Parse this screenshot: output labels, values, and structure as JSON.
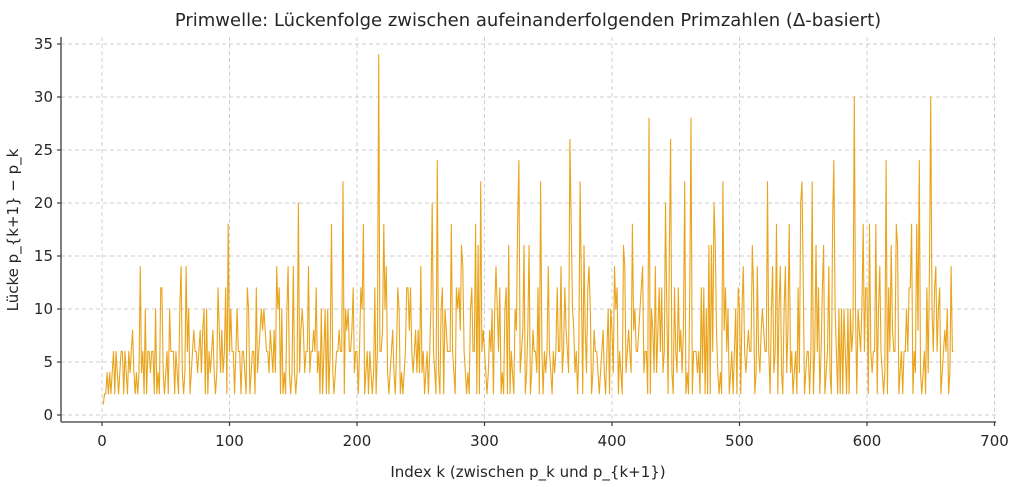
{
  "figure": {
    "title": "Primwelle: Lückenfolge zwischen aufeinanderfolgenden Primzahlen (Δ-basiert)",
    "xlabel": "Index k (zwischen p_k und p_{k+1})",
    "ylabel": "Lücke p_{k+1} − p_k"
  },
  "style": {
    "line_color": "#E9A41C",
    "grid_color": "#cccccc",
    "spine_color": "#3a3a3a",
    "text_color": "#262626",
    "background": "#ffffff"
  },
  "chart_data": {
    "type": "line",
    "title": "Primwelle: Lückenfolge zwischen aufeinanderfolgenden Primzahlen (Δ-basiert)",
    "xlabel": "Index k (zwischen p_k und p_{k+1})",
    "ylabel": "Lücke p_{k+1} − p_k",
    "legend": "none",
    "grid": "dashed",
    "x_start": 1,
    "n_points": 668,
    "xlim": [
      -33,
      701
    ],
    "ylim": [
      -0.65,
      35.65
    ],
    "xticks": [
      0,
      100,
      200,
      300,
      400,
      500,
      600,
      700
    ],
    "yticks": [
      0,
      5,
      10,
      15,
      20,
      25,
      30,
      35
    ],
    "values": [
      1,
      2,
      2,
      4,
      2,
      4,
      2,
      4,
      6,
      2,
      6,
      4,
      2,
      4,
      6,
      6,
      2,
      6,
      4,
      2,
      6,
      4,
      6,
      8,
      4,
      2,
      4,
      2,
      4,
      14,
      4,
      6,
      2,
      10,
      2,
      6,
      6,
      4,
      6,
      6,
      2,
      10,
      2,
      4,
      2,
      12,
      12,
      4,
      2,
      4,
      6,
      2,
      10,
      6,
      6,
      6,
      2,
      6,
      4,
      2,
      10,
      14,
      4,
      2,
      4,
      14,
      6,
      10,
      2,
      4,
      6,
      8,
      6,
      6,
      4,
      6,
      8,
      4,
      8,
      10,
      2,
      10,
      2,
      6,
      4,
      6,
      8,
      4,
      2,
      4,
      12,
      8,
      4,
      8,
      4,
      6,
      12,
      2,
      18,
      6,
      10,
      6,
      6,
      2,
      6,
      10,
      6,
      6,
      2,
      6,
      6,
      4,
      2,
      12,
      10,
      2,
      4,
      6,
      6,
      2,
      12,
      4,
      6,
      8,
      10,
      8,
      10,
      8,
      6,
      6,
      4,
      8,
      6,
      4,
      8,
      4,
      14,
      10,
      12,
      2,
      10,
      2,
      4,
      2,
      10,
      14,
      4,
      2,
      4,
      14,
      4,
      2,
      4,
      20,
      4,
      8,
      10,
      8,
      4,
      6,
      6,
      14,
      4,
      6,
      6,
      8,
      6,
      12,
      4,
      6,
      2,
      10,
      2,
      6,
      10,
      2,
      10,
      2,
      6,
      18,
      4,
      2,
      4,
      6,
      6,
      8,
      6,
      6,
      22,
      2,
      10,
      8,
      10,
      6,
      6,
      8,
      12,
      4,
      6,
      6,
      2,
      6,
      12,
      10,
      18,
      2,
      4,
      6,
      2,
      6,
      4,
      2,
      4,
      12,
      2,
      6,
      34,
      6,
      6,
      8,
      18,
      10,
      14,
      4,
      2,
      4,
      6,
      8,
      4,
      2,
      6,
      12,
      10,
      2,
      4,
      2,
      4,
      6,
      12,
      12,
      8,
      12,
      6,
      4,
      6,
      8,
      4,
      8,
      4,
      14,
      4,
      6,
      2,
      4,
      6,
      2,
      6,
      10,
      20,
      6,
      4,
      2,
      24,
      4,
      2,
      10,
      12,
      2,
      10,
      8,
      6,
      6,
      6,
      18,
      6,
      4,
      2,
      12,
      10,
      12,
      8,
      16,
      14,
      6,
      4,
      2,
      4,
      2,
      10,
      12,
      6,
      6,
      18,
      2,
      16,
      2,
      22,
      6,
      8,
      6,
      4,
      2,
      4,
      8,
      6,
      10,
      2,
      10,
      14,
      10,
      6,
      12,
      2,
      4,
      2,
      10,
      12,
      2,
      16,
      2,
      6,
      4,
      2,
      10,
      8,
      18,
      24,
      4,
      6,
      8,
      16,
      2,
      4,
      8,
      16,
      2,
      4,
      8,
      6,
      6,
      4,
      12,
      2,
      22,
      6,
      2,
      6,
      4,
      6,
      14,
      6,
      4,
      2,
      6,
      4,
      6,
      12,
      6,
      6,
      14,
      4,
      6,
      12,
      8,
      6,
      4,
      26,
      18,
      10,
      8,
      4,
      6,
      2,
      6,
      22,
      12,
      2,
      16,
      8,
      4,
      12,
      14,
      10,
      2,
      4,
      8,
      6,
      6,
      4,
      2,
      4,
      6,
      8,
      4,
      2,
      6,
      10,
      2,
      10,
      8,
      4,
      14,
      10,
      12,
      2,
      6,
      4,
      2,
      16,
      14,
      4,
      6,
      8,
      6,
      4,
      18,
      8,
      10,
      6,
      6,
      8,
      10,
      12,
      14,
      4,
      6,
      6,
      2,
      28,
      2,
      10,
      8,
      4,
      14,
      4,
      8,
      12,
      6,
      12,
      4,
      6,
      20,
      10,
      2,
      16,
      26,
      4,
      2,
      12,
      6,
      4,
      12,
      6,
      8,
      4,
      8,
      22,
      2,
      4,
      2,
      12,
      28,
      2,
      6,
      6,
      6,
      4,
      6,
      2,
      12,
      4,
      12,
      2,
      10,
      2,
      16,
      2,
      16,
      6,
      20,
      16,
      8,
      4,
      2,
      4,
      2,
      22,
      8,
      12,
      6,
      10,
      2,
      4,
      6,
      2,
      6,
      10,
      2,
      12,
      10,
      2,
      10,
      14,
      6,
      4,
      6,
      8,
      6,
      6,
      16,
      12,
      2,
      4,
      14,
      6,
      4,
      8,
      10,
      8,
      6,
      6,
      22,
      6,
      2,
      10,
      14,
      4,
      6,
      18,
      2,
      10,
      14,
      4,
      2,
      10,
      14,
      4,
      8,
      18,
      4,
      6,
      2,
      4,
      6,
      2,
      12,
      4,
      20,
      22,
      12,
      2,
      4,
      6,
      6,
      2,
      6,
      22,
      2,
      6,
      16,
      6,
      12,
      2,
      6,
      12,
      16,
      2,
      4,
      6,
      14,
      4,
      2,
      18,
      24,
      10,
      6,
      2,
      10,
      2,
      10,
      2,
      10,
      6,
      2,
      10,
      2,
      10,
      6,
      8,
      30,
      10,
      2,
      10,
      8,
      6,
      10,
      18,
      6,
      12,
      12,
      2,
      18,
      6,
      4,
      6,
      6,
      18,
      2,
      10,
      14,
      6,
      4,
      2,
      4,
      24,
      2,
      12,
      6,
      16,
      8,
      6,
      6,
      18,
      16,
      2,
      4,
      6,
      2,
      6,
      6,
      10,
      6,
      12,
      12,
      18,
      2,
      6,
      4,
      18,
      8,
      24,
      4,
      2,
      4,
      6,
      2,
      12,
      4,
      14,
      30,
      10,
      6,
      12,
      14,
      6,
      10,
      12,
      2,
      4,
      6,
      8,
      6,
      10,
      2,
      4,
      14,
      6,
      6
    ]
  }
}
